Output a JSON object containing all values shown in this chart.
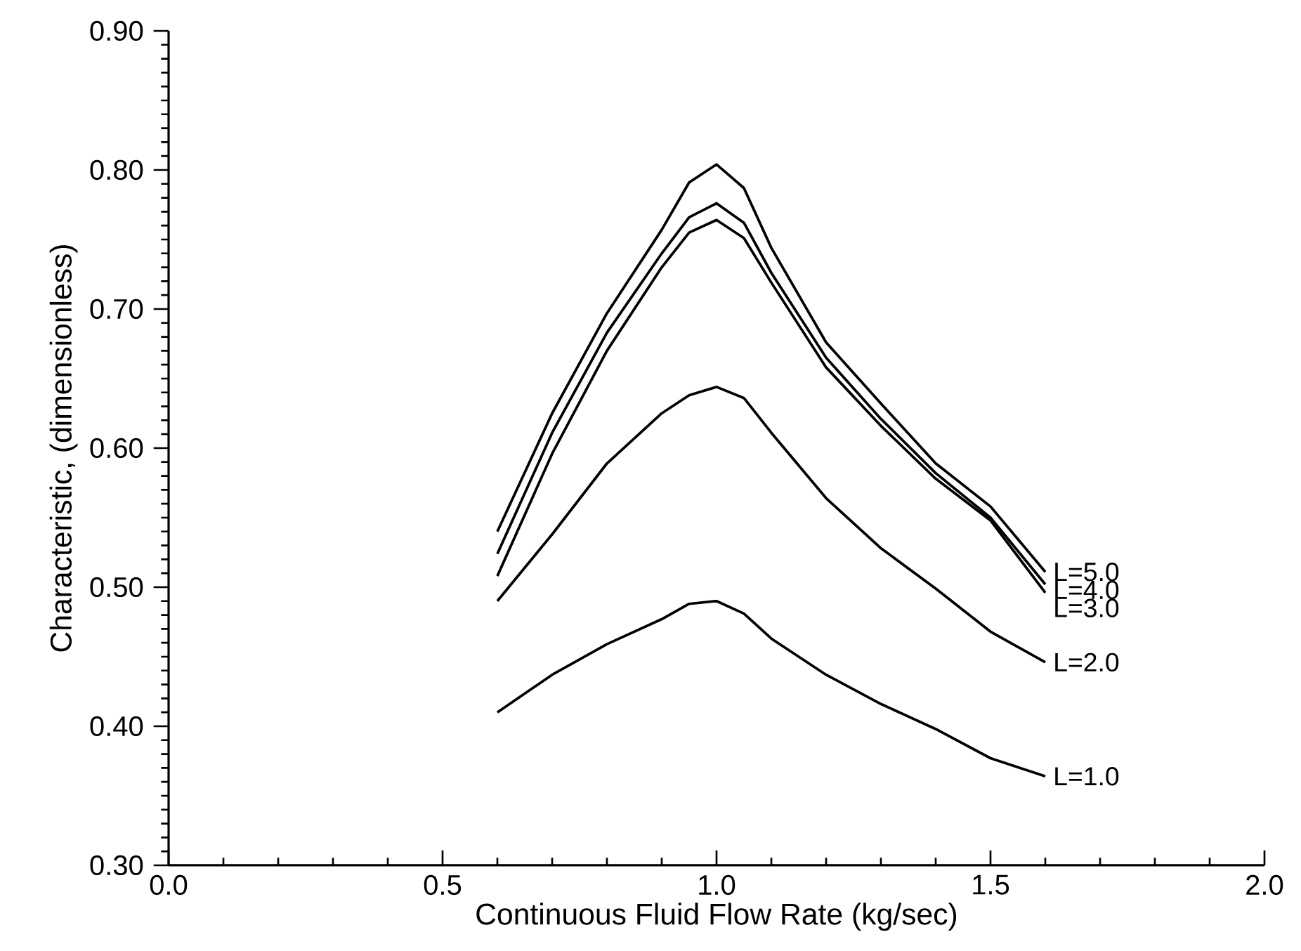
{
  "chart_data": {
    "type": "line",
    "xlabel": "Continuous Fluid Flow Rate (kg/sec)",
    "ylabel": "Characteristic, (dimensionless)",
    "xlim": [
      0,
      2.0
    ],
    "ylim": [
      0.3,
      0.9
    ],
    "xticks": [
      {
        "value": 0,
        "label": "0.0"
      },
      0.5,
      {
        "value": 1,
        "label": "1.0"
      },
      1.5,
      {
        "value": 2,
        "label": "2.0"
      }
    ],
    "yticks": [
      {
        "value": 0.3,
        "label": "0.30"
      },
      {
        "value": 0.4,
        "label": "0.40"
      },
      {
        "value": 0.5,
        "label": "0.50"
      },
      {
        "value": 0.6,
        "label": "0.60"
      },
      {
        "value": 0.7,
        "label": "0.70"
      },
      {
        "value": 0.8,
        "label": "0.80"
      },
      {
        "value": 0.9,
        "label": "0.90"
      }
    ],
    "x": [
      0.6,
      0.7,
      0.8,
      0.9,
      0.95,
      1.0,
      1.05,
      1.1,
      1.2,
      1.3,
      1.4,
      1.5,
      1.6
    ],
    "grid": false,
    "legend": false,
    "marker": "none",
    "line_style": "solid",
    "series": [
      {
        "name": "L=5.0",
        "color": "#000000",
        "values": [
          0.54,
          0.625,
          0.697,
          0.757,
          0.791,
          0.804,
          0.787,
          0.744,
          0.676,
          0.632,
          0.589,
          0.558,
          0.511
        ]
      },
      {
        "name": "L=4.0",
        "color": "#000000",
        "values": [
          0.524,
          0.611,
          0.683,
          0.74,
          0.766,
          0.776,
          0.762,
          0.726,
          0.665,
          0.621,
          0.582,
          0.55,
          0.502
        ]
      },
      {
        "name": "L=3.0",
        "color": "#000000",
        "values": [
          0.508,
          0.596,
          0.67,
          0.73,
          0.755,
          0.764,
          0.751,
          0.719,
          0.658,
          0.616,
          0.578,
          0.548,
          0.496
        ]
      },
      {
        "name": "L=2.0",
        "color": "#000000",
        "values": [
          0.49,
          0.538,
          0.589,
          0.625,
          0.638,
          0.644,
          0.636,
          0.611,
          0.564,
          0.528,
          0.499,
          0.468,
          0.446
        ]
      },
      {
        "name": "L=1.0",
        "color": "#000000",
        "values": [
          0.41,
          0.437,
          0.459,
          0.477,
          0.488,
          0.49,
          0.481,
          0.463,
          0.437,
          0.416,
          0.398,
          0.377,
          0.364
        ]
      }
    ]
  }
}
